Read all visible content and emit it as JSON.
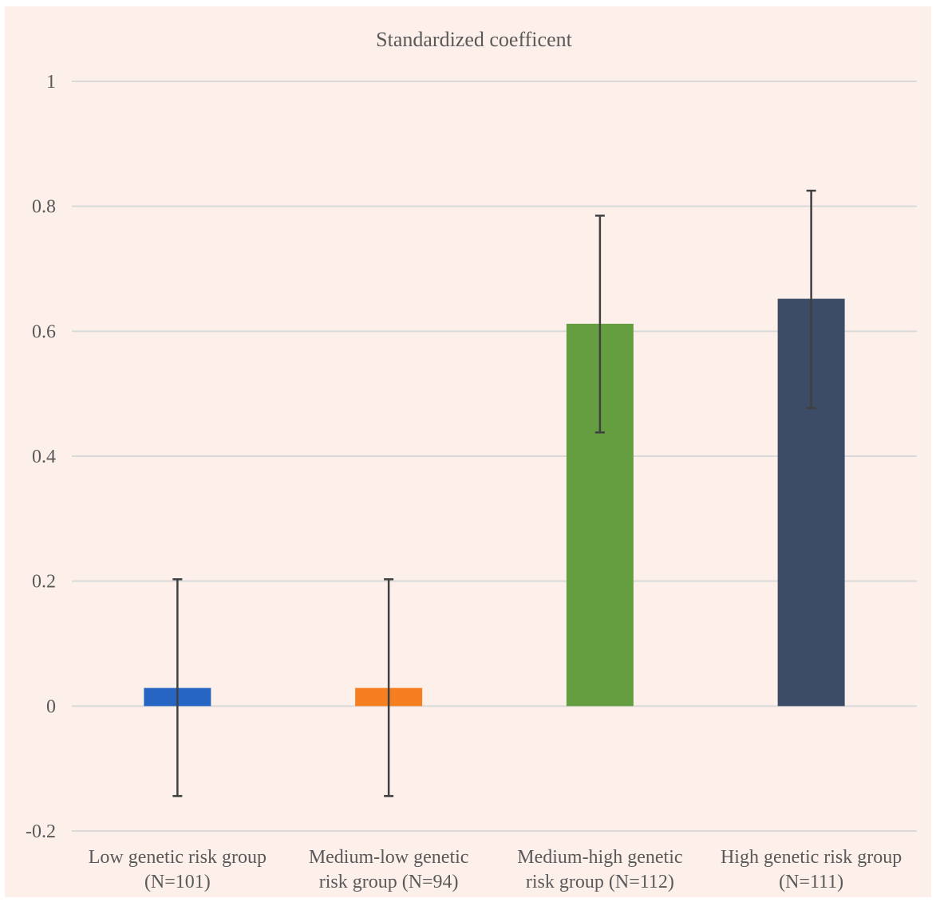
{
  "chart_data": {
    "type": "bar",
    "title": "Standardized coefficent",
    "categories": [
      [
        "Low genetic risk group",
        "(N=101)"
      ],
      [
        "Medium-low genetic",
        "risk group (N=94)"
      ],
      [
        "Medium-high genetic",
        "risk group (N=112)"
      ],
      [
        "High genetic risk group",
        "(N=111)"
      ]
    ],
    "values": [
      0.029,
      0.029,
      0.612,
      0.652
    ],
    "error_low": [
      -0.144,
      -0.144,
      0.438,
      0.477
    ],
    "error_high": [
      0.203,
      0.203,
      0.785,
      0.825
    ],
    "colors": [
      "#2666c2",
      "#f57e20",
      "#649e40",
      "#3d4c66"
    ],
    "ylim": [
      -0.2,
      1
    ],
    "yticks": [
      -0.2,
      0,
      0.2,
      0.4,
      0.6,
      0.8,
      1
    ],
    "ytick_labels": [
      "-0.2",
      "0",
      "0.2",
      "0.4",
      "0.6",
      "0.8",
      "1"
    ],
    "grid": true,
    "legend": "none",
    "colors_style": {
      "background": "#fdf0eb",
      "grid": "#d9d9d9",
      "text": "#595959",
      "error_bar": "#404040"
    }
  }
}
